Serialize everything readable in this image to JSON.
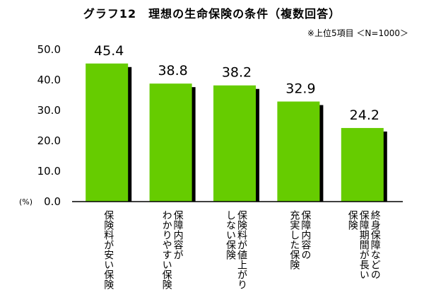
{
  "chart_data": {
    "type": "bar",
    "title": "グラフ12　理想の生命保険の条件（複数回答）",
    "note": "※上位5項目 ＜N=1000＞",
    "ylabel": "(%)",
    "ylim": [
      0,
      50
    ],
    "yticks": [
      "0.0",
      "10.0",
      "20.0",
      "30.0",
      "40.0",
      "50.0"
    ],
    "grid": false,
    "categories": [
      [
        "保険料が安い保険"
      ],
      [
        "保障内容が",
        "わかりやすい保険"
      ],
      [
        "保険料が値上がり",
        "しない保険"
      ],
      [
        "保障内容の",
        "充実した保険"
      ],
      [
        "終身保障などの",
        "保障期間が長い",
        "保険"
      ]
    ],
    "values": [
      45.4,
      38.8,
      38.2,
      32.9,
      24.2
    ],
    "value_labels": [
      "45.4",
      "38.8",
      "38.2",
      "32.9",
      "24.2"
    ],
    "colors": {
      "bar": "#66cc00",
      "shadow": "#000000",
      "axis": "#000000"
    }
  }
}
